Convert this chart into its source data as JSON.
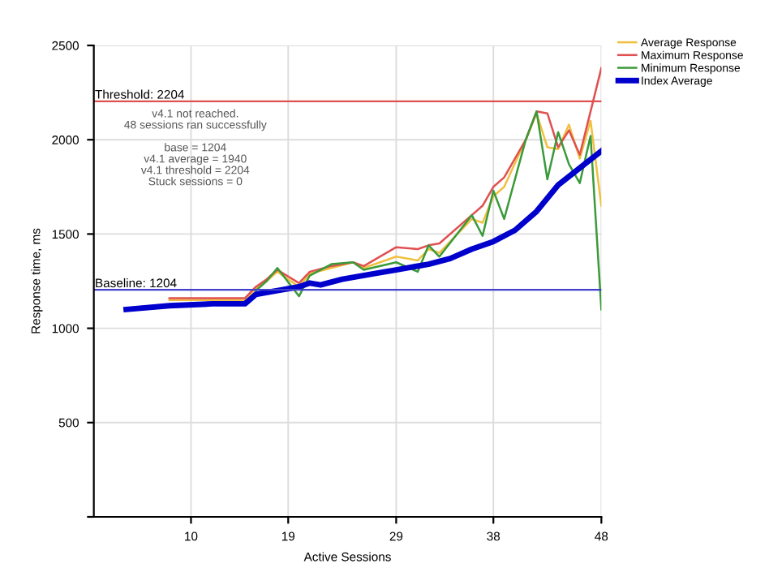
{
  "chart_data": {
    "type": "line",
    "xlabel": "Active Sessions",
    "ylabel": "Response time, ms",
    "xlim": [
      1,
      48
    ],
    "xticks": [
      10,
      19,
      29,
      38,
      48
    ],
    "ylim": [
      0,
      2500
    ],
    "yticks": [
      {
        "value": 0,
        "label": null
      },
      500,
      1000,
      1500,
      2000,
      2500
    ],
    "grid": true,
    "legend": "top right",
    "line_style": "solid",
    "marker": "none",
    "series": [
      {
        "name": "Average Response",
        "color": "#f0c040",
        "x": [
          8,
          12,
          15,
          16,
          17,
          18,
          20,
          21,
          23,
          25,
          26,
          29,
          31,
          32,
          33,
          36,
          37,
          38,
          39,
          41,
          42,
          43,
          44,
          45,
          46,
          47,
          48
        ],
        "values": [
          1150,
          1150,
          1150,
          1210,
          1250,
          1300,
          1220,
          1290,
          1320,
          1350,
          1320,
          1380,
          1360,
          1420,
          1400,
          1580,
          1560,
          1700,
          1750,
          2000,
          2140,
          1960,
          1950,
          2080,
          1900,
          2100,
          1650
        ]
      },
      {
        "name": "Maximum Response",
        "color": "#e05050",
        "x": [
          8,
          12,
          15,
          16,
          17,
          18,
          20,
          21,
          23,
          25,
          26,
          29,
          31,
          32,
          33,
          36,
          37,
          38,
          39,
          41,
          42,
          43,
          44,
          45,
          46,
          47,
          48
        ],
        "values": [
          1160,
          1160,
          1160,
          1220,
          1260,
          1310,
          1240,
          1300,
          1330,
          1350,
          1330,
          1430,
          1420,
          1440,
          1450,
          1600,
          1650,
          1750,
          1800,
          2000,
          2150,
          2140,
          1960,
          2050,
          1920,
          2150,
          2380
        ]
      },
      {
        "name": "Minimum Response",
        "color": "#3a9a3a",
        "x": [
          16,
          17,
          18,
          20,
          21,
          23,
          25,
          26,
          29,
          31,
          32,
          33,
          36,
          37,
          38,
          39,
          41,
          42,
          43,
          44,
          45,
          46,
          47,
          48
        ],
        "values": [
          1200,
          1250,
          1320,
          1170,
          1280,
          1340,
          1350,
          1310,
          1350,
          1300,
          1440,
          1380,
          1600,
          1490,
          1730,
          1580,
          2000,
          2150,
          1790,
          2040,
          1870,
          1770,
          2020,
          1100
        ]
      },
      {
        "name": "Index Average",
        "color": "#0000cc",
        "x": [
          4,
          8,
          12,
          15,
          16,
          18,
          20,
          21,
          22,
          24,
          27,
          29,
          32,
          34,
          36,
          38,
          40,
          42,
          44,
          46,
          48
        ],
        "values": [
          1100,
          1120,
          1130,
          1130,
          1180,
          1200,
          1220,
          1240,
          1230,
          1260,
          1290,
          1310,
          1340,
          1370,
          1420,
          1460,
          1520,
          1620,
          1760,
          1850,
          1940
        ]
      }
    ],
    "ref_lines": [
      {
        "axis": "y",
        "value": 2204,
        "label": "Threshold: 2204",
        "color": "#e05050",
        "line_style": "solid"
      },
      {
        "axis": "y",
        "value": 1204,
        "label": "Baseline: 1204",
        "color": "#4040cc",
        "line_style": "solid"
      }
    ],
    "annotations": [
      "v4.1 not reached.",
      "48 sessions ran successfully",
      "base = 1204",
      "v4.1 average = 1940",
      "v4.1 threshold = 2204",
      "Stuck sessions = 0"
    ]
  }
}
